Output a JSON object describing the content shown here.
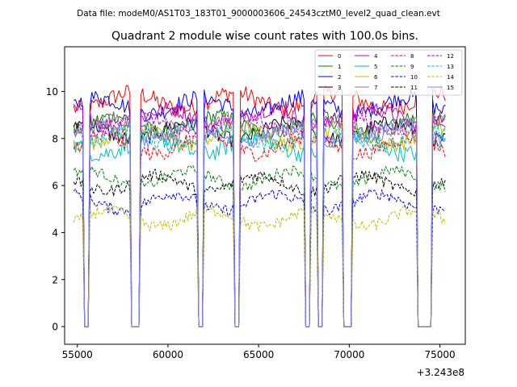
{
  "header": {
    "data_file_label": "Data file: modeM0/AS1T03_183T01_9000003606_24543cztM0_level2_quad_clean.evt"
  },
  "chart_data": {
    "type": "line",
    "title": "Quadrant 2 module wise count rates with 100.0s bins.",
    "xlabel": "",
    "ylabel": "",
    "x_offset_label": "+3.243e8",
    "x_offset": 324300000,
    "xlim": [
      54300,
      76400
    ],
    "ylim": [
      -0.75,
      11.9
    ],
    "x_ticks": [
      55000,
      60000,
      65000,
      70000,
      75000
    ],
    "x_tick_labels": [
      "55000",
      "60000",
      "65000",
      "70000",
      "75000"
    ],
    "y_ticks": [
      0,
      2,
      4,
      6,
      8,
      10
    ],
    "y_tick_labels": [
      "0",
      "2",
      "4",
      "6",
      "8",
      "10"
    ],
    "x_start": 54800,
    "x_end": 75300,
    "bin_seconds": 100,
    "gaps": [
      [
        55400,
        55600
      ],
      [
        58000,
        58400
      ],
      [
        61700,
        61900
      ],
      [
        63700,
        63900
      ],
      [
        67600,
        67800
      ],
      [
        68300,
        68500
      ],
      [
        69700,
        70100
      ],
      [
        73800,
        74500
      ]
    ],
    "legend_position": "top-right",
    "series": [
      {
        "name": "0",
        "color": "#ff0000",
        "dash": "solid",
        "mean": 9.6,
        "noise": 0.38
      },
      {
        "name": "1",
        "color": "#008000",
        "dash": "solid",
        "mean": 8.6,
        "noise": 0.32
      },
      {
        "name": "2",
        "color": "#0000ff",
        "dash": "solid",
        "mean": 9.4,
        "noise": 0.35
      },
      {
        "name": "3",
        "color": "#000000",
        "dash": "solid",
        "mean": 8.3,
        "noise": 0.32
      },
      {
        "name": "4",
        "color": "#bf00bf",
        "dash": "solid",
        "mean": 8.9,
        "noise": 0.33
      },
      {
        "name": "5",
        "color": "#00bfbf",
        "dash": "solid",
        "mean": 7.7,
        "noise": 0.38
      },
      {
        "name": "6",
        "color": "#bfbf00",
        "dash": "solid",
        "mean": 8.1,
        "noise": 0.32
      },
      {
        "name": "7",
        "color": "#808080",
        "dash": "solid",
        "mean": 8.5,
        "noise": 0.32
      },
      {
        "name": "8",
        "color": "#ff0000",
        "dash": "dashed",
        "mean": 7.7,
        "noise": 0.32
      },
      {
        "name": "9",
        "color": "#008000",
        "dash": "dashed",
        "mean": 6.3,
        "noise": 0.22
      },
      {
        "name": "10",
        "color": "#0000ff",
        "dash": "dashed",
        "mean": 5.3,
        "noise": 0.25
      },
      {
        "name": "11",
        "color": "#000000",
        "dash": "dashed",
        "mean": 6.1,
        "noise": 0.25
      },
      {
        "name": "12",
        "color": "#bf00bf",
        "dash": "dashed",
        "mean": 8.6,
        "noise": 0.28
      },
      {
        "name": "13",
        "color": "#00bfbf",
        "dash": "dashed",
        "mean": 8.0,
        "noise": 0.3
      },
      {
        "name": "14",
        "color": "#bfbf00",
        "dash": "dashed",
        "mean": 4.6,
        "noise": 0.25
      },
      {
        "name": "15",
        "color": "#8080ff",
        "dash": "solid",
        "mean": 8.2,
        "noise": 0.3
      }
    ]
  }
}
